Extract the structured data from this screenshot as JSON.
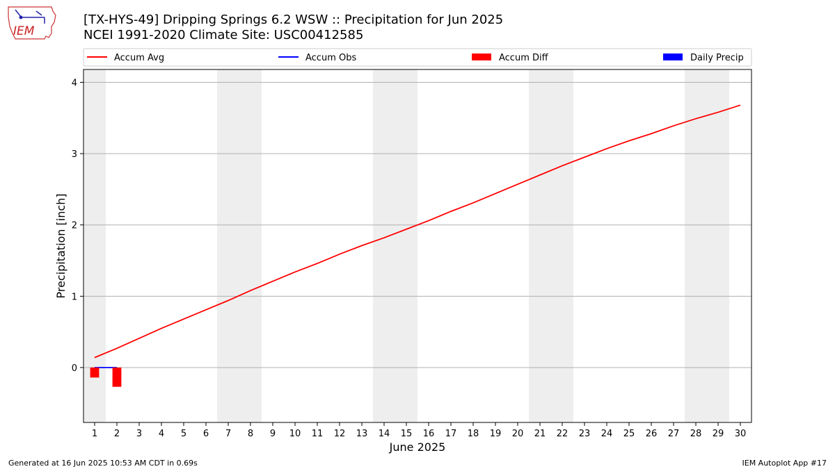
{
  "header": {
    "title_line1": "[TX-HYS-49] Dripping Springs 6.2 WSW :: Precipitation for Jun 2025",
    "title_line2": "NCEI 1991-2020 Climate Site: USC00412585",
    "logo_text": "IEM"
  },
  "footer": {
    "generated": "Generated at 16 Jun 2025 10:53 AM CDT in 0.69s",
    "app": "IEM Autoplot App #17"
  },
  "colors": {
    "avg": "#ff0000",
    "obs": "#0000ff",
    "diff": "#ff0000",
    "daily": "#0000ff",
    "weekend": "#eeeeee",
    "grid": "#b0b0b0"
  },
  "chart_data": {
    "type": "line",
    "xlabel": "June 2025",
    "ylabel": "Precipitation [inch]",
    "xlim": [
      0.5,
      30.5
    ],
    "ylim": [
      -0.77,
      4.18
    ],
    "yticks": [
      0,
      1,
      2,
      3,
      4
    ],
    "x_ticks": [
      1,
      2,
      3,
      4,
      5,
      6,
      7,
      8,
      9,
      10,
      11,
      12,
      13,
      14,
      15,
      16,
      17,
      18,
      19,
      20,
      21,
      22,
      23,
      24,
      25,
      26,
      27,
      28,
      29,
      30
    ],
    "weekend_days": [
      1,
      7,
      8,
      14,
      15,
      21,
      22,
      28,
      29
    ],
    "grid": "horizontal",
    "legend": {
      "position": "top",
      "items": [
        {
          "label": "Accum Avg",
          "kind": "line",
          "color": "#ff0000"
        },
        {
          "label": "Accum Obs",
          "kind": "line",
          "color": "#0000ff"
        },
        {
          "label": "Accum Diff",
          "kind": "bar",
          "color": "#ff0000"
        },
        {
          "label": "Daily Precip",
          "kind": "bar",
          "color": "#0000ff"
        }
      ]
    },
    "series": [
      {
        "name": "Accum Avg",
        "kind": "line",
        "x": [
          1,
          2,
          3,
          4,
          5,
          6,
          7,
          8,
          9,
          10,
          11,
          12,
          13,
          14,
          15,
          16,
          17,
          18,
          19,
          20,
          21,
          22,
          23,
          24,
          25,
          26,
          27,
          28,
          29,
          30
        ],
        "values": [
          0.14,
          0.27,
          0.41,
          0.55,
          0.68,
          0.81,
          0.94,
          1.08,
          1.21,
          1.34,
          1.46,
          1.59,
          1.71,
          1.82,
          1.94,
          2.06,
          2.19,
          2.31,
          2.44,
          2.57,
          2.7,
          2.83,
          2.95,
          3.07,
          3.18,
          3.28,
          3.39,
          3.49,
          3.58,
          3.68
        ]
      },
      {
        "name": "Accum Obs",
        "kind": "line",
        "x": [
          1,
          2
        ],
        "values": [
          0.0,
          0.0
        ]
      },
      {
        "name": "Accum Diff",
        "kind": "bar",
        "x": [
          1,
          2
        ],
        "values": [
          -0.14,
          -0.27
        ]
      },
      {
        "name": "Daily Precip",
        "kind": "bar",
        "x": [
          1,
          2
        ],
        "values": [
          0.0,
          0.0
        ]
      }
    ]
  }
}
